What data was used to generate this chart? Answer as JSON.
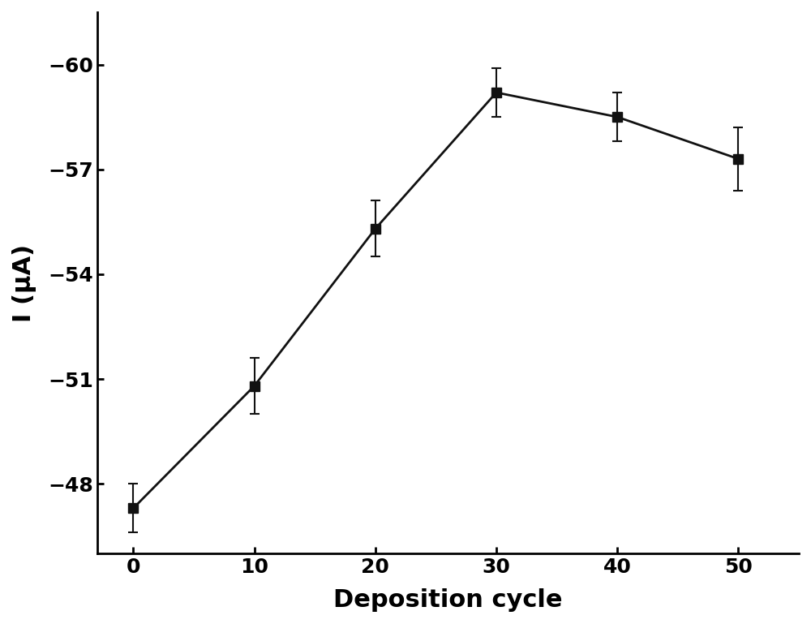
{
  "x": [
    0,
    10,
    20,
    30,
    40,
    50
  ],
  "y": [
    -47.3,
    -50.8,
    -55.3,
    -59.2,
    -58.5,
    -57.3
  ],
  "yerr": [
    0.7,
    0.8,
    0.8,
    0.7,
    0.7,
    0.9
  ],
  "xlabel": "Deposition cycle",
  "ylabel": "I (μA)",
  "xlim": [
    -3,
    55
  ],
  "ylim_bottom": -46.0,
  "ylim_top": -61.5,
  "yticks": [
    -60,
    -57,
    -54,
    -51,
    -48
  ],
  "xticks": [
    0,
    10,
    20,
    30,
    40,
    50
  ],
  "line_color": "#555555",
  "marker_color": "#111111",
  "marker": "s",
  "markersize": 8,
  "linewidth": 2.0,
  "capsize": 4,
  "elinewidth": 1.5,
  "xlabel_fontsize": 22,
  "ylabel_fontsize": 22,
  "tick_fontsize": 18,
  "xlabel_fontweight": "bold",
  "ylabel_fontweight": "bold",
  "tick_fontweight": "bold",
  "background_color": "#ffffff",
  "spine_linewidth": 2.0
}
